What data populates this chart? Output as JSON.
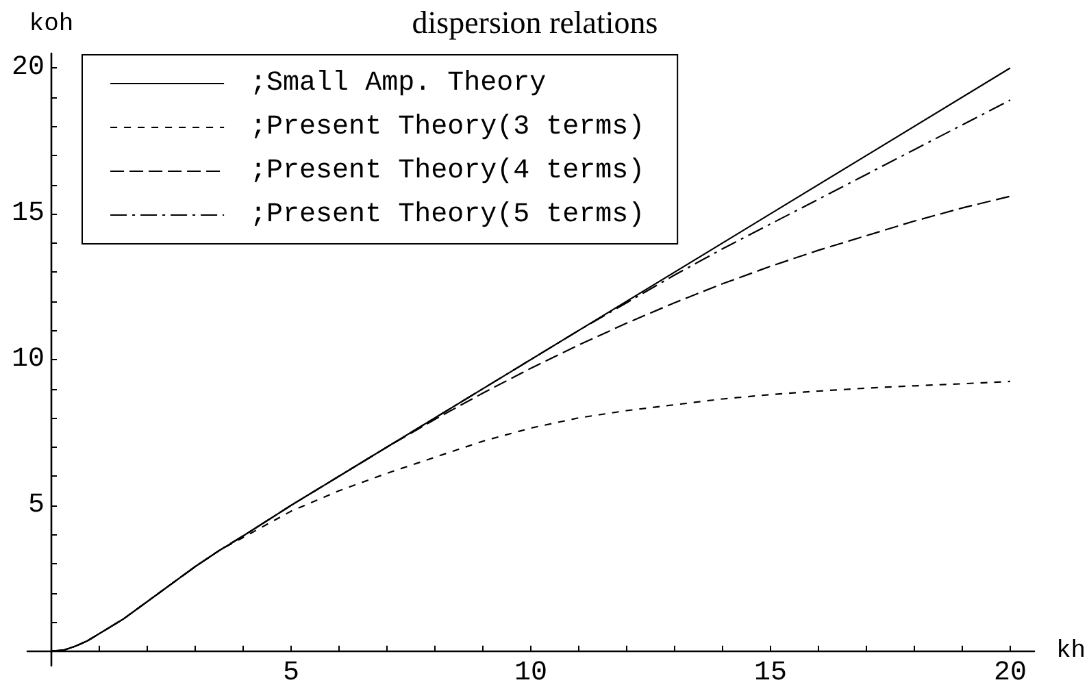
{
  "chart_data": {
    "type": "line",
    "title": "dispersion relations",
    "xlabel": "kh",
    "ylabel": "koh",
    "xlim": [
      -0.5,
      20.5
    ],
    "ylim": [
      -0.5,
      20.5
    ],
    "xticks": [
      {
        "value": 1,
        "label": null
      },
      {
        "value": 2,
        "label": null
      },
      {
        "value": 3,
        "label": null
      },
      {
        "value": 4,
        "label": null
      },
      5,
      {
        "value": 6,
        "label": null
      },
      {
        "value": 7,
        "label": null
      },
      {
        "value": 8,
        "label": null
      },
      {
        "value": 9,
        "label": null
      },
      10,
      {
        "value": 11,
        "label": null
      },
      {
        "value": 12,
        "label": null
      },
      {
        "value": 13,
        "label": null
      },
      {
        "value": 14,
        "label": null
      },
      15,
      {
        "value": 16,
        "label": null
      },
      {
        "value": 17,
        "label": null
      },
      {
        "value": 18,
        "label": null
      },
      {
        "value": 19,
        "label": null
      },
      20
    ],
    "yticks": [
      {
        "value": 1,
        "label": null
      },
      {
        "value": 2,
        "label": null
      },
      {
        "value": 3,
        "label": null
      },
      {
        "value": 4,
        "label": null
      },
      5,
      {
        "value": 6,
        "label": null
      },
      {
        "value": 7,
        "label": null
      },
      {
        "value": 8,
        "label": null
      },
      {
        "value": 9,
        "label": null
      },
      10,
      {
        "value": 11,
        "label": null
      },
      {
        "value": 12,
        "label": null
      },
      {
        "value": 13,
        "label": null
      },
      {
        "value": 14,
        "label": null
      },
      15,
      {
        "value": 16,
        "label": null
      },
      {
        "value": 17,
        "label": null
      },
      {
        "value": 18,
        "label": null
      },
      {
        "value": 19,
        "label": null
      },
      20
    ],
    "grid": false,
    "legend": "top left",
    "marker": "none",
    "series": [
      {
        "name": ";Small Amp. Theory",
        "color": "#000000",
        "line_style": "solid",
        "x": [
          0,
          0.25,
          0.5,
          0.75,
          1,
          1.5,
          2,
          2.5,
          3,
          3.5,
          4,
          5,
          10,
          15,
          20
        ],
        "values": [
          0,
          0.03,
          0.17,
          0.35,
          0.6,
          1.1,
          1.7,
          2.3,
          2.9,
          3.45,
          3.95,
          5,
          10,
          15,
          20
        ]
      },
      {
        "name": ";Present Theory(3 terms)",
        "color": "#000000",
        "line_style": "dashed",
        "x": [
          0,
          0.25,
          0.5,
          0.75,
          1,
          1.5,
          2,
          2.5,
          3,
          3.5,
          4,
          5,
          6,
          7,
          8,
          9,
          10,
          11,
          12,
          13,
          14,
          15,
          16,
          17,
          18,
          19,
          20
        ],
        "values": [
          0,
          0.03,
          0.17,
          0.35,
          0.6,
          1.1,
          1.7,
          2.3,
          2.9,
          3.45,
          3.9,
          4.8,
          5.5,
          6.1,
          6.65,
          7.2,
          7.65,
          8.0,
          8.25,
          8.45,
          8.65,
          8.8,
          8.92,
          9.02,
          9.1,
          9.17,
          9.25
        ]
      },
      {
        "name": ";Present Theory(4 terms)",
        "color": "#000000",
        "line_style": "long_dashed",
        "x": [
          0,
          0.25,
          0.5,
          0.75,
          1,
          1.5,
          2,
          2.5,
          3,
          3.5,
          4,
          5,
          6,
          7,
          8,
          9,
          10,
          11,
          12,
          13,
          14,
          15,
          16,
          17,
          18,
          19,
          20
        ],
        "values": [
          0,
          0.03,
          0.17,
          0.35,
          0.6,
          1.1,
          1.7,
          2.3,
          2.9,
          3.45,
          3.95,
          5,
          6,
          7,
          7.95,
          8.85,
          9.7,
          10.5,
          11.25,
          11.95,
          12.6,
          13.2,
          13.75,
          14.25,
          14.75,
          15.2,
          15.6
        ]
      },
      {
        "name": ";Present Theory(5 terms)",
        "color": "#000000",
        "line_style": "dash_dot",
        "x": [
          0,
          0.25,
          0.5,
          0.75,
          1,
          1.5,
          2,
          2.5,
          3,
          3.5,
          4,
          5,
          10,
          11,
          12,
          13,
          14,
          15,
          16,
          17,
          18,
          19,
          20
        ],
        "values": [
          0,
          0.03,
          0.17,
          0.35,
          0.6,
          1.1,
          1.7,
          2.3,
          2.9,
          3.45,
          3.95,
          5,
          10,
          11,
          11.95,
          12.9,
          13.8,
          14.65,
          15.5,
          16.35,
          17.2,
          18.05,
          18.9
        ]
      }
    ]
  }
}
